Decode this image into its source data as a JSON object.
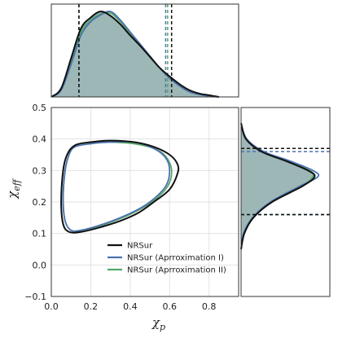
{
  "chart_data": {
    "type": "corner",
    "xlabel": {
      "main": "χ",
      "sub": "p"
    },
    "ylabel": {
      "main": "χ",
      "sub": "eff"
    },
    "xlim": [
      0.0,
      0.95
    ],
    "ylim": [
      -0.1,
      0.5
    ],
    "x_ticks": [
      "0.0",
      "0.2",
      "0.4",
      "0.6",
      "0.8"
    ],
    "y_ticks": [
      "−0.1",
      "0.0",
      "0.1",
      "0.2",
      "0.3",
      "0.4",
      "0.5"
    ],
    "grid": true,
    "legend_position": "bottom-center",
    "series": [
      {
        "name": "NRSur",
        "color": "#111111",
        "contour_90": [
          [
            0.12,
            0.38
          ],
          [
            0.2,
            0.39
          ],
          [
            0.3,
            0.395
          ],
          [
            0.42,
            0.39
          ],
          [
            0.52,
            0.375
          ],
          [
            0.6,
            0.35
          ],
          [
            0.64,
            0.32
          ],
          [
            0.64,
            0.29
          ],
          [
            0.6,
            0.24
          ],
          [
            0.52,
            0.2
          ],
          [
            0.44,
            0.165
          ],
          [
            0.35,
            0.14
          ],
          [
            0.25,
            0.12
          ],
          [
            0.15,
            0.105
          ],
          [
            0.09,
            0.105
          ],
          [
            0.06,
            0.13
          ],
          [
            0.05,
            0.2
          ],
          [
            0.06,
            0.3
          ],
          [
            0.08,
            0.35
          ]
        ],
        "x_marginal": [
          [
            0.0,
            0.0
          ],
          [
            0.05,
            0.1
          ],
          [
            0.1,
            0.45
          ],
          [
            0.15,
            0.8
          ],
          [
            0.2,
            0.93
          ],
          [
            0.25,
            1.0
          ],
          [
            0.3,
            0.95
          ],
          [
            0.35,
            0.85
          ],
          [
            0.4,
            0.72
          ],
          [
            0.45,
            0.6
          ],
          [
            0.5,
            0.47
          ],
          [
            0.55,
            0.34
          ],
          [
            0.6,
            0.24
          ],
          [
            0.65,
            0.15
          ],
          [
            0.7,
            0.08
          ],
          [
            0.75,
            0.04
          ],
          [
            0.8,
            0.02
          ],
          [
            0.85,
            0.0
          ]
        ],
        "y_marginal": [
          [
            0.05,
            0.0
          ],
          [
            0.1,
            0.04
          ],
          [
            0.15,
            0.15
          ],
          [
            0.2,
            0.38
          ],
          [
            0.25,
            0.75
          ],
          [
            0.28,
            0.9
          ],
          [
            0.3,
            0.82
          ],
          [
            0.33,
            0.55
          ],
          [
            0.36,
            0.25
          ],
          [
            0.4,
            0.06
          ],
          [
            0.45,
            0.0
          ]
        ],
        "x_interval": [
          0.14,
          0.61
        ],
        "y_interval": [
          0.16,
          0.37
        ]
      },
      {
        "name": "NRSur (Aprroximation I)",
        "color": "#4c72b0",
        "contour_90": [
          [
            0.12,
            0.375
          ],
          [
            0.2,
            0.385
          ],
          [
            0.3,
            0.39
          ],
          [
            0.42,
            0.39
          ],
          [
            0.52,
            0.37
          ],
          [
            0.58,
            0.34
          ],
          [
            0.6,
            0.3
          ],
          [
            0.58,
            0.25
          ],
          [
            0.5,
            0.2
          ],
          [
            0.42,
            0.17
          ],
          [
            0.33,
            0.145
          ],
          [
            0.24,
            0.125
          ],
          [
            0.15,
            0.11
          ],
          [
            0.1,
            0.11
          ],
          [
            0.07,
            0.14
          ],
          [
            0.06,
            0.21
          ],
          [
            0.07,
            0.3
          ],
          [
            0.09,
            0.35
          ]
        ],
        "x_marginal": [
          [
            0.0,
            0.0
          ],
          [
            0.05,
            0.08
          ],
          [
            0.1,
            0.38
          ],
          [
            0.15,
            0.72
          ],
          [
            0.2,
            0.88
          ],
          [
            0.25,
            0.96
          ],
          [
            0.3,
            1.0
          ],
          [
            0.35,
            0.9
          ],
          [
            0.4,
            0.76
          ],
          [
            0.45,
            0.62
          ],
          [
            0.5,
            0.48
          ],
          [
            0.55,
            0.34
          ],
          [
            0.6,
            0.22
          ],
          [
            0.65,
            0.13
          ],
          [
            0.7,
            0.06
          ],
          [
            0.75,
            0.03
          ],
          [
            0.8,
            0.01
          ],
          [
            0.85,
            0.0
          ]
        ],
        "y_marginal": [
          [
            0.05,
            0.0
          ],
          [
            0.1,
            0.03
          ],
          [
            0.15,
            0.14
          ],
          [
            0.2,
            0.36
          ],
          [
            0.25,
            0.72
          ],
          [
            0.28,
            0.94
          ],
          [
            0.3,
            0.88
          ],
          [
            0.33,
            0.6
          ],
          [
            0.36,
            0.28
          ],
          [
            0.4,
            0.07
          ],
          [
            0.45,
            0.0
          ]
        ],
        "x_interval": [
          0.14,
          0.58
        ],
        "y_interval": [
          0.16,
          0.36
        ]
      },
      {
        "name": "NRSur (Aprroximation II)",
        "color": "#55a868",
        "contour_90": [
          [
            0.12,
            0.38
          ],
          [
            0.2,
            0.39
          ],
          [
            0.3,
            0.39
          ],
          [
            0.42,
            0.385
          ],
          [
            0.52,
            0.37
          ],
          [
            0.58,
            0.345
          ],
          [
            0.61,
            0.3
          ],
          [
            0.59,
            0.25
          ],
          [
            0.52,
            0.205
          ],
          [
            0.43,
            0.17
          ],
          [
            0.34,
            0.145
          ],
          [
            0.25,
            0.125
          ],
          [
            0.15,
            0.11
          ],
          [
            0.1,
            0.11
          ],
          [
            0.07,
            0.14
          ],
          [
            0.06,
            0.21
          ],
          [
            0.07,
            0.3
          ],
          [
            0.09,
            0.35
          ]
        ],
        "x_marginal": [
          [
            0.0,
            0.0
          ],
          [
            0.05,
            0.09
          ],
          [
            0.1,
            0.42
          ],
          [
            0.15,
            0.76
          ],
          [
            0.2,
            0.9
          ],
          [
            0.25,
            0.97
          ],
          [
            0.3,
            0.98
          ],
          [
            0.35,
            0.88
          ],
          [
            0.4,
            0.74
          ],
          [
            0.45,
            0.61
          ],
          [
            0.5,
            0.47
          ],
          [
            0.55,
            0.34
          ],
          [
            0.6,
            0.22
          ],
          [
            0.65,
            0.13
          ],
          [
            0.7,
            0.06
          ],
          [
            0.75,
            0.03
          ],
          [
            0.8,
            0.01
          ],
          [
            0.85,
            0.0
          ]
        ],
        "y_marginal": [
          [
            0.05,
            0.0
          ],
          [
            0.1,
            0.035
          ],
          [
            0.15,
            0.15
          ],
          [
            0.2,
            0.37
          ],
          [
            0.25,
            0.74
          ],
          [
            0.28,
            0.88
          ],
          [
            0.3,
            0.84
          ],
          [
            0.33,
            0.57
          ],
          [
            0.36,
            0.26
          ],
          [
            0.4,
            0.065
          ],
          [
            0.45,
            0.0
          ]
        ],
        "x_interval": [
          0.14,
          0.59
        ],
        "y_interval": [
          0.16,
          0.37
        ]
      }
    ]
  }
}
